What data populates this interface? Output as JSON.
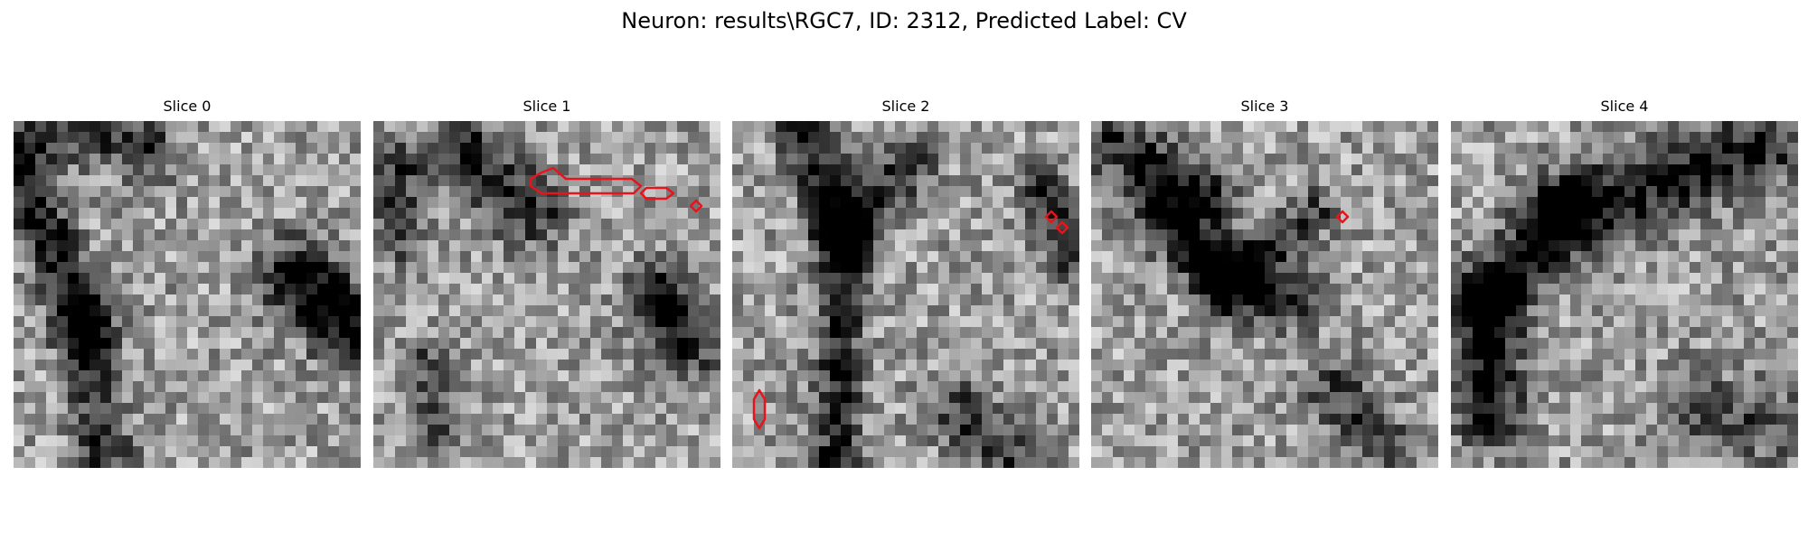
{
  "figure": {
    "title": "Neuron: results\\RGC7, ID: 2312, Predicted Label: CV"
  },
  "slices": [
    {
      "title": "Slice 0"
    },
    {
      "title": "Slice 1"
    },
    {
      "title": "Slice 2"
    },
    {
      "title": "Slice 3"
    },
    {
      "title": "Slice 4"
    }
  ],
  "colors": {
    "contour": "#e8141b",
    "colormap": "gray"
  }
}
